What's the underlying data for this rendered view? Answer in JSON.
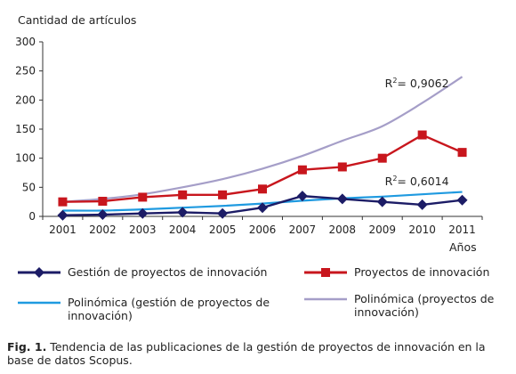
{
  "chart_data": {
    "type": "line",
    "ylabel": "Cantidad de artículos",
    "xlabel": "Años",
    "categories": [
      "2001",
      "2002",
      "2003",
      "2004",
      "2005",
      "2006",
      "2007",
      "2008",
      "2009",
      "2010",
      "2011"
    ],
    "ylim": [
      0,
      300
    ],
    "yticks": [
      "0",
      "50",
      "100",
      "150",
      "200",
      "250",
      "300"
    ],
    "grid": false,
    "legend_position": "bottom",
    "series": [
      {
        "name": "Gestión de proyectos de innovación",
        "color": "#1c1c66",
        "marker": "diamond",
        "values": [
          2,
          3,
          5,
          7,
          5,
          15,
          35,
          30,
          25,
          20,
          28
        ]
      },
      {
        "name": "Proyectos de innovación",
        "color": "#c8161d",
        "marker": "square",
        "values": [
          25,
          26,
          33,
          37,
          37,
          47,
          80,
          85,
          100,
          140,
          110
        ]
      },
      {
        "name": "Polinómica (gestión de proyectos de innovación)",
        "color": "#1f9ae0",
        "marker": "none",
        "values": [
          10,
          10,
          12,
          15,
          18,
          22,
          27,
          31,
          34,
          38,
          42
        ]
      },
      {
        "name": "Polinómica (proyectos de innovación)",
        "color": "#a59ec8",
        "marker": "none",
        "values": [
          25,
          30,
          38,
          50,
          64,
          82,
          104,
          130,
          155,
          195,
          240
        ]
      }
    ],
    "annotations": [
      {
        "text": "R",
        "sup": "2",
        "rest": "= 0,9062",
        "x": "2010",
        "y": 228
      },
      {
        "text": "R",
        "sup": "2",
        "rest": "= 0,6014",
        "x": "2010",
        "y": 60
      }
    ]
  },
  "legend": [
    "Gestión de proyectos de innovación",
    "Proyectos de innovación",
    "Polinómica (gestión de proyectos de innovación)",
    "Polinómica (proyectos de innovación)"
  ],
  "caption": {
    "label": "Fig. 1.",
    "text": " Tendencia de las publicaciones de la gestión de proyectos de innovación en la base de datos Scopus."
  }
}
